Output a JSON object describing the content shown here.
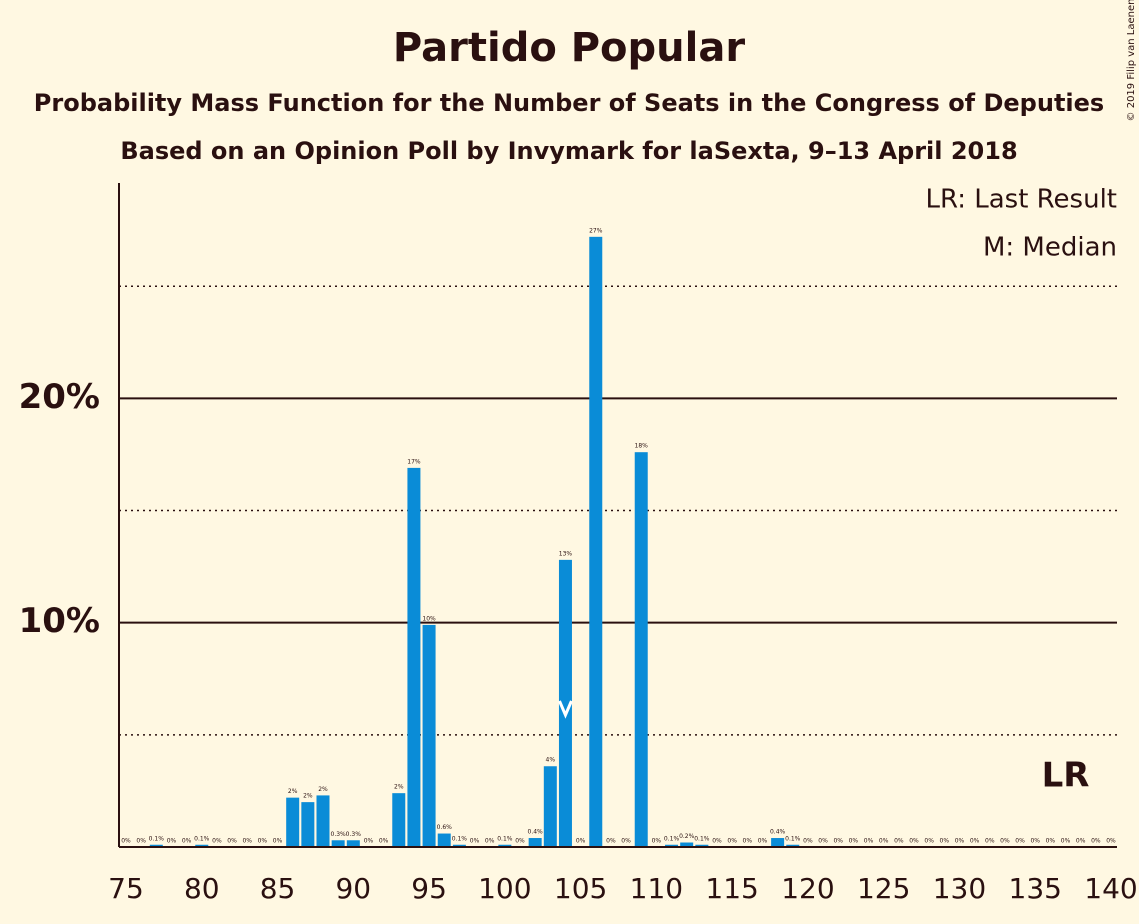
{
  "chart_data": {
    "type": "bar",
    "title": "Partido Popular",
    "subtitle": "Probability Mass Function for the Number of Seats in the Congress of Deputies",
    "subtitle2": "Based on an Opinion Poll by Invymark for laSexta, 9–13 April 2018",
    "copyright": "© 2019 Filip van Laenen",
    "legend": [
      "LR: Last Result",
      "M: Median"
    ],
    "last_result_label": "LR",
    "last_result": 137,
    "median": 104,
    "color": "#0a8cd7",
    "x": [
      75,
      76,
      77,
      78,
      79,
      80,
      81,
      82,
      83,
      84,
      85,
      86,
      87,
      88,
      89,
      90,
      91,
      92,
      93,
      94,
      95,
      96,
      97,
      98,
      99,
      100,
      101,
      102,
      103,
      104,
      105,
      106,
      107,
      108,
      109,
      110,
      111,
      112,
      113,
      114,
      115,
      116,
      117,
      118,
      119,
      120,
      121,
      122,
      123,
      124,
      125,
      126,
      127,
      128,
      129,
      130,
      131,
      132,
      133,
      134,
      135,
      136,
      137,
      138,
      139,
      140
    ],
    "values": [
      0,
      0,
      0.1,
      0,
      0,
      0.1,
      0,
      0,
      0,
      0,
      0,
      2.2,
      2.0,
      2.3,
      0.3,
      0.3,
      0,
      0,
      2.4,
      16.9,
      9.9,
      0.6,
      0.1,
      0,
      0,
      0.1,
      0,
      0.4,
      3.6,
      12.8,
      0,
      27.2,
      0,
      0,
      17.6,
      0,
      0.1,
      0.2,
      0.1,
      0,
      0,
      0,
      0,
      0.4,
      0.1,
      0,
      0,
      0,
      0,
      0,
      0,
      0,
      0,
      0,
      0,
      0,
      0,
      0,
      0,
      0,
      0,
      0,
      0,
      0,
      0,
      0
    ],
    "value_labels": [
      "0%",
      "0%",
      "0.1%",
      "0%",
      "0%",
      "0.1%",
      "0%",
      "0%",
      "0%",
      "0%",
      "0%",
      "2%",
      "2%",
      "2%",
      "0.3%",
      "0.3%",
      "0%",
      "0%",
      "2%",
      "17%",
      "10%",
      "0.6%",
      "0.1%",
      "0%",
      "0%",
      "0.1%",
      "0%",
      "0.4%",
      "4%",
      "13%",
      "0%",
      "27%",
      "0%",
      "0%",
      "18%",
      "0%",
      "0.1%",
      "0.2%",
      "0.1%",
      "0%",
      "0%",
      "0%",
      "0%",
      "0.4%",
      "0.1%",
      "0%",
      "0%",
      "0%",
      "0%",
      "0%",
      "0%",
      "0%",
      "0%",
      "0%",
      "0%",
      "0%",
      "0%",
      "0%",
      "0%",
      "0%",
      "0%",
      "0%",
      "0%",
      "0%",
      "0%",
      "0%"
    ],
    "xlim": [
      74.5,
      140.5
    ],
    "xticks": [
      75,
      80,
      85,
      90,
      95,
      100,
      105,
      110,
      115,
      120,
      125,
      130,
      135,
      140
    ],
    "ylim": [
      0,
      29.6
    ],
    "yticks": [
      {
        "value": 10,
        "label": "10%"
      },
      {
        "value": 20,
        "label": "20%"
      }
    ],
    "minor_yticks": [
      5,
      15,
      25
    ],
    "grid": true
  }
}
